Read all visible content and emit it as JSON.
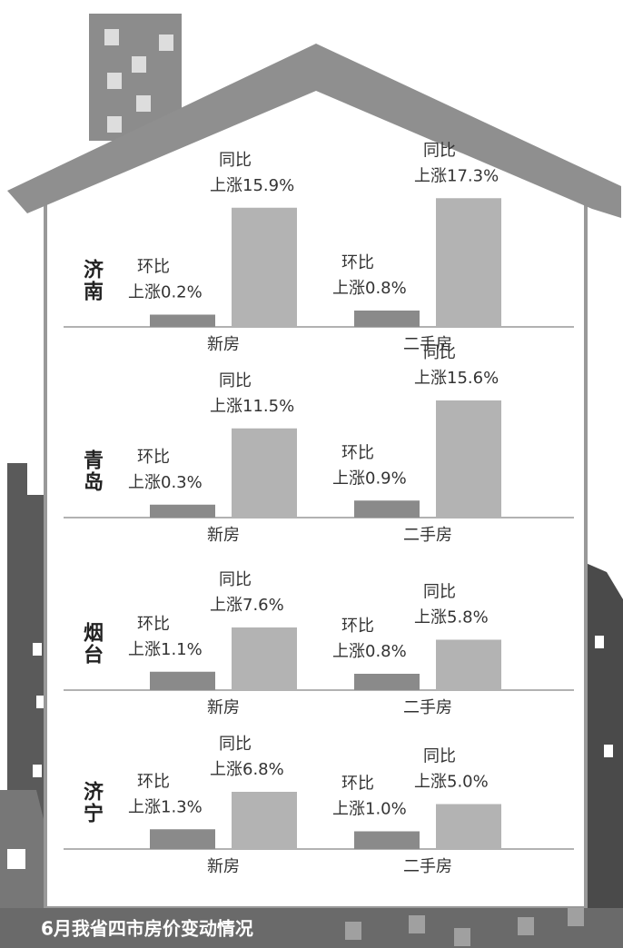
{
  "caption": "6月我省四市房价变动情况",
  "chart_data": [
    {
      "type": "bar",
      "title": "济南",
      "categories": [
        "新房",
        "二手房"
      ],
      "series": [
        {
          "name": "环比",
          "color": "#8a8a8a",
          "values": [
            0.2,
            0.8
          ],
          "value_labels": [
            "上涨0.2%",
            "上涨0.8%"
          ]
        },
        {
          "name": "同比",
          "color": "#b3b3b3",
          "values": [
            15.9,
            17.3
          ],
          "value_labels": [
            "上涨15.9%",
            "上涨17.3%"
          ]
        }
      ]
    },
    {
      "type": "bar",
      "title": "青岛",
      "categories": [
        "新房",
        "二手房"
      ],
      "series": [
        {
          "name": "环比",
          "color": "#8a8a8a",
          "values": [
            0.3,
            0.9
          ],
          "value_labels": [
            "上涨0.3%",
            "上涨0.9%"
          ]
        },
        {
          "name": "同比",
          "color": "#b3b3b3",
          "values": [
            11.5,
            15.6
          ],
          "value_labels": [
            "上涨11.5%",
            "上涨15.6%"
          ]
        }
      ]
    },
    {
      "type": "bar",
      "title": "烟台",
      "categories": [
        "新房",
        "二手房"
      ],
      "series": [
        {
          "name": "环比",
          "color": "#8a8a8a",
          "values": [
            1.1,
            0.8
          ],
          "value_labels": [
            "上涨1.1%",
            "上涨0.8%"
          ]
        },
        {
          "name": "同比",
          "color": "#b3b3b3",
          "values": [
            7.6,
            5.8
          ],
          "value_labels": [
            "上涨7.6%",
            "上涨5.8%"
          ]
        }
      ]
    },
    {
      "type": "bar",
      "title": "济宁",
      "categories": [
        "新房",
        "二手房"
      ],
      "series": [
        {
          "name": "环比",
          "color": "#8a8a8a",
          "values": [
            1.3,
            1.0
          ],
          "value_labels": [
            "上涨1.3%",
            "上涨1.0%"
          ]
        },
        {
          "name": "同比",
          "color": "#b3b3b3",
          "values": [
            6.8,
            5.0
          ],
          "value_labels": [
            "上涨6.8%",
            "上涨5.0%"
          ]
        }
      ]
    }
  ]
}
